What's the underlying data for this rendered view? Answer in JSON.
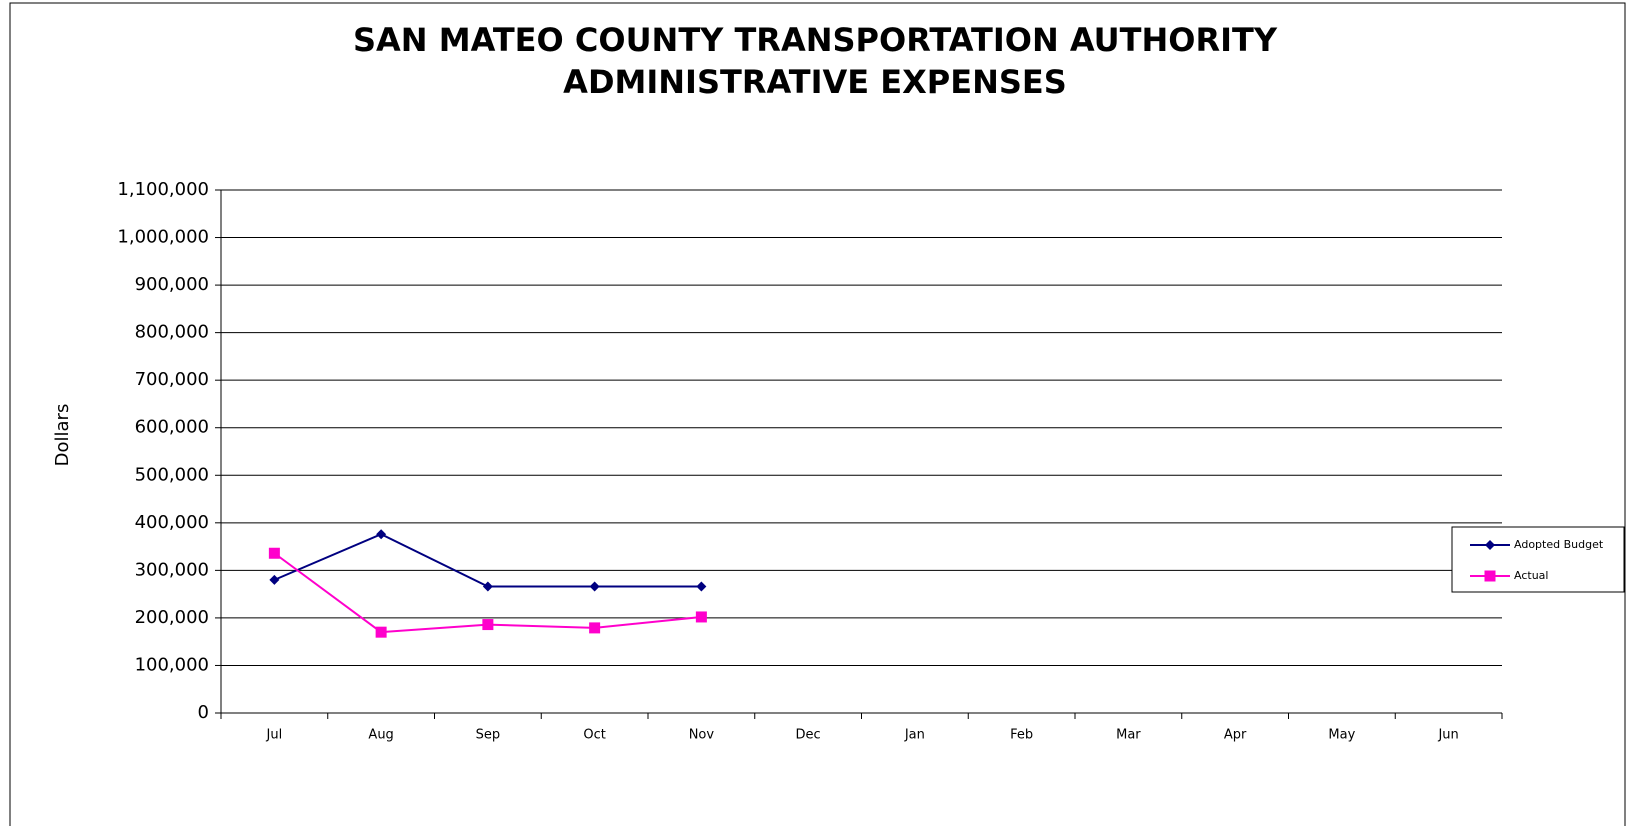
{
  "chart_data": {
    "type": "line",
    "title": "SAN MATEO COUNTY TRANSPORTATION AUTHORITY",
    "subtitle": "ADMINISTRATIVE EXPENSES",
    "y_label": "Dollars",
    "categories": [
      "Jul",
      "Aug",
      "Sep",
      "Oct",
      "Nov",
      "Dec",
      "Jan",
      "Feb",
      "Mar",
      "Apr",
      "May",
      "Jun"
    ],
    "series": [
      {
        "name": "Adopted Budget",
        "color": "#000080",
        "marker": "diamond",
        "values": [
          280000,
          376000,
          266000,
          266000,
          266000,
          null,
          null,
          null,
          null,
          null,
          null,
          null
        ]
      },
      {
        "name": "Actual",
        "color": "#ff00cc",
        "marker": "square",
        "values": [
          336000,
          170000,
          186000,
          179000,
          202000,
          null,
          null,
          null,
          null,
          null,
          null,
          null
        ]
      }
    ],
    "ylim": [
      0,
      1100000
    ],
    "yticks": [
      0,
      {
        "value": 100000,
        "label": "100,000"
      },
      {
        "value": 200000,
        "label": "200,000"
      },
      {
        "value": 300000,
        "label": "300,000"
      },
      {
        "value": 400000,
        "label": "400,000"
      },
      {
        "value": 500000,
        "label": "500,000"
      },
      {
        "value": 600000,
        "label": "600,000"
      },
      {
        "value": 700000,
        "label": "700,000"
      },
      {
        "value": 800000,
        "label": "800,000"
      },
      {
        "value": 900000,
        "label": "900,000"
      },
      {
        "value": 1000000,
        "label": "1,000,000"
      },
      {
        "value": 1100000,
        "label": "1,100,000"
      }
    ],
    "grid": true,
    "legend": "right"
  }
}
